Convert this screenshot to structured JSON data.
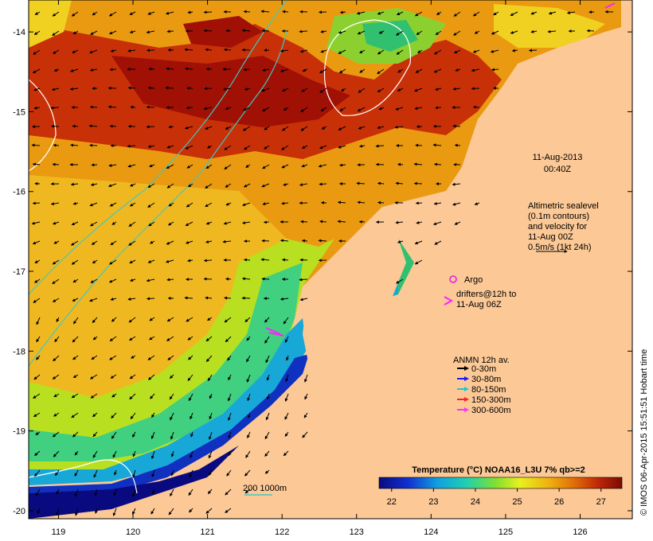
{
  "map": {
    "lat_ticks": [
      "-14",
      "-15",
      "-16",
      "-17",
      "-18",
      "-19",
      "-20"
    ],
    "lon_ticks": [
      "119",
      "120",
      "121",
      "122",
      "123",
      "124",
      "125",
      "126"
    ],
    "lat_range": [
      -20.1,
      -13.6
    ],
    "lon_range": [
      118.6,
      126.7
    ]
  },
  "annotations": {
    "date": "11-Aug-2013",
    "time": "00:40Z",
    "altimetry_lines": [
      "Altimetric sealevel",
      "(0.1m contours)",
      "and velocity for",
      "11-Aug 00Z",
      "0.5m/s (1kt 24h)"
    ],
    "argo": "Argo",
    "drifters_lines": [
      "drifters@12h to",
      "11-Aug 06Z"
    ],
    "isobath": "200  1000m"
  },
  "anmn_legend": {
    "title": "ANMN 12h av.",
    "items": [
      {
        "label": "0-30m",
        "color": "#000000"
      },
      {
        "label": "30-80m",
        "color": "#1a1aff"
      },
      {
        "label": "80-150m",
        "color": "#18c8d8"
      },
      {
        "label": "150-300m",
        "color": "#ff2020"
      },
      {
        "label": "300-600m",
        "color": "#ff30ff"
      }
    ]
  },
  "colorbar": {
    "title": "Temperature (°C) NOAA16_L3U 7% qb>=2",
    "ticks": [
      "22",
      "23",
      "24",
      "25",
      "26",
      "27"
    ],
    "range": [
      21.7,
      27.5
    ]
  },
  "footer": "© IMOS 06-Apr-2015 15:51:51 Hobart time",
  "colors": {
    "land": "#fbc896",
    "argo": "#e020e0",
    "drifter": "#ff20ff",
    "contour": "#ffffff",
    "isobath": "#40c8c0"
  }
}
